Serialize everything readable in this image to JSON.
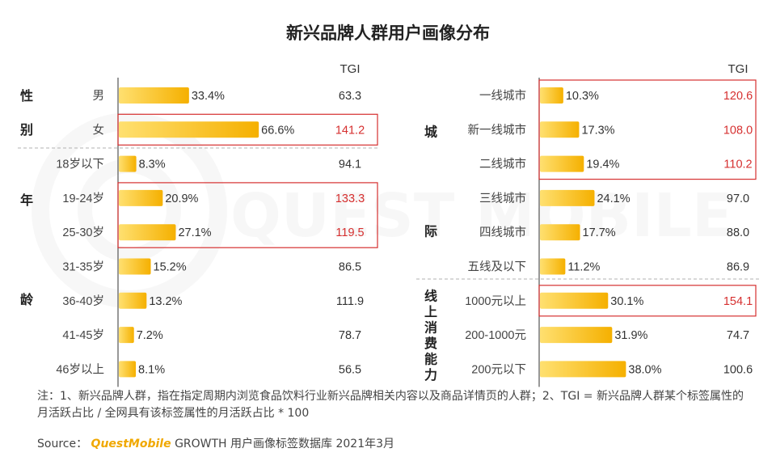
{
  "title": "新兴品牌人群用户画像分布",
  "watermark": "QUEST MOBILE",
  "tgi_header": "TGI",
  "note": "注：1、新兴品牌人群，指在指定周期内浏览食品饮料行业新兴品牌相关内容以及商品详情页的人群；2、TGI = 新兴品牌人群某个标签属性的月活跃占比 / 全网具有该标签属性的月活跃占比 * 100",
  "source": {
    "prefix": "Source：",
    "brand": "QuestMobile",
    "suffix": "GROWTH 用户画像标签数据库 2021年3月"
  },
  "colors": {
    "bar_start": "#ffe070",
    "bar_end": "#f5b000",
    "highlight": "#d63030",
    "text": "#333333"
  },
  "chart_data": [
    {
      "type": "bar",
      "orientation": "horizontal",
      "panel": "left",
      "groups": [
        {
          "label": "性别",
          "chars": [
            "性",
            "别"
          ]
        },
        {
          "label": "年龄",
          "chars": [
            "年",
            "龄"
          ]
        }
      ],
      "categories": [
        "男",
        "女",
        "18岁以下",
        "19-24岁",
        "25-30岁",
        "31-35岁",
        "36-40岁",
        "41-45岁",
        "46岁以上"
      ],
      "values": [
        33.4,
        66.6,
        8.3,
        20.9,
        27.1,
        15.2,
        13.2,
        7.2,
        8.1
      ],
      "value_labels": [
        "33.4%",
        "66.6%",
        "8.3%",
        "20.9%",
        "27.1%",
        "15.2%",
        "13.2%",
        "7.2%",
        "8.1%"
      ],
      "tgi": [
        "63.3",
        "141.2",
        "94.1",
        "133.3",
        "119.5",
        "86.5",
        "111.9",
        "78.7",
        "56.5"
      ],
      "highlighted": [
        false,
        true,
        false,
        true,
        true,
        false,
        false,
        false,
        false
      ],
      "xlim": [
        0,
        100
      ]
    },
    {
      "type": "bar",
      "orientation": "horizontal",
      "panel": "right",
      "groups": [
        {
          "label": "城际",
          "chars": [
            "城",
            "际"
          ]
        },
        {
          "label": "线上消费能力",
          "chars": [
            "线",
            "上",
            "消",
            "费",
            "能",
            "力"
          ]
        }
      ],
      "categories": [
        "一线城市",
        "新一线城市",
        "二线城市",
        "三线城市",
        "四线城市",
        "五线及以下",
        "1000元以上",
        "200-1000元",
        "200元以下"
      ],
      "values": [
        10.3,
        17.3,
        19.4,
        24.1,
        17.7,
        11.2,
        30.1,
        31.9,
        38.0
      ],
      "value_labels": [
        "10.3%",
        "17.3%",
        "19.4%",
        "24.1%",
        "17.7%",
        "11.2%",
        "30.1%",
        "31.9%",
        "38.0%"
      ],
      "tgi": [
        "120.6",
        "108.0",
        "110.2",
        "97.0",
        "88.0",
        "86.9",
        "154.1",
        "74.7",
        "100.6"
      ],
      "highlighted": [
        true,
        true,
        true,
        false,
        false,
        false,
        true,
        false,
        false
      ],
      "xlim": [
        0,
        100
      ]
    }
  ]
}
